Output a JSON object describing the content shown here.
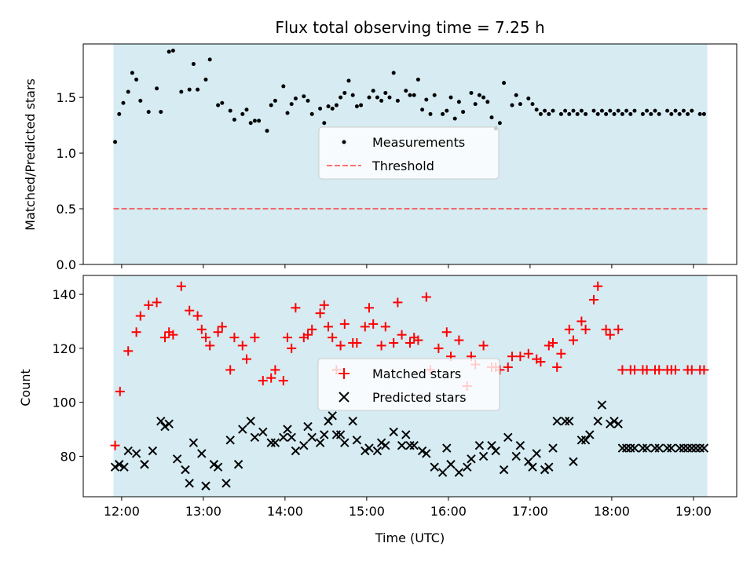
{
  "chart_data": {
    "title": "Flux total observing time = 7.25 h",
    "xlabel": "Time (UTC)",
    "x_ticks": [
      "12:00",
      "13:00",
      "14:00",
      "15:00",
      "16:00",
      "17:00",
      "18:00",
      "19:00"
    ],
    "x_tick_hours": [
      12,
      13,
      14,
      15,
      16,
      17,
      18,
      19
    ],
    "x_range_hours": [
      11.53,
      19.53
    ],
    "shaded_span_hours": [
      11.9,
      19.17
    ],
    "colors": {
      "shade": "#add8e6",
      "matched": "#ff0000",
      "predicted": "#000000",
      "threshold": "#ff0000",
      "measurements": "#000000"
    },
    "subplots": [
      {
        "type": "scatter",
        "ylabel": "Matched/Predicted stars",
        "ylim": [
          0,
          1.98
        ],
        "y_ticks": [
          0.0,
          0.5,
          1.0,
          1.5
        ],
        "y_tick_labels": [
          "0.0",
          "0.5",
          "1.0",
          "1.5"
        ],
        "legend_labels": [
          "Measurements",
          "Threshold"
        ],
        "legend_position": "center",
        "threshold": 0.5,
        "series": [
          {
            "name": "Measurements",
            "x": [
              11.92,
              11.97,
              12.02,
              12.08,
              12.13,
              12.18,
              12.23,
              12.33,
              12.43,
              12.48,
              12.58,
              12.63,
              12.73,
              12.83,
              12.88,
              12.93,
              13.03,
              13.08,
              13.18,
              13.23,
              13.33,
              13.38,
              13.48,
              13.53,
              13.58,
              13.63,
              13.68,
              13.78,
              13.83,
              13.88,
              13.98,
              14.03,
              14.08,
              14.13,
              14.23,
              14.28,
              14.33,
              14.43,
              14.48,
              14.53,
              14.58,
              14.63,
              14.68,
              14.73,
              14.78,
              14.83,
              14.88,
              14.93,
              15.03,
              15.08,
              15.13,
              15.18,
              15.23,
              15.28,
              15.33,
              15.38,
              15.48,
              15.53,
              15.58,
              15.63,
              15.68,
              15.73,
              15.78,
              15.83,
              15.93,
              15.98,
              16.03,
              16.08,
              16.13,
              16.18,
              16.28,
              16.33,
              16.38,
              16.43,
              16.48,
              16.53,
              16.58,
              16.63,
              16.68,
              16.78,
              16.83,
              16.88,
              16.98,
              17.03,
              17.08,
              17.13,
              17.18,
              17.23,
              17.28,
              17.38,
              17.43,
              17.48,
              17.53,
              17.58,
              17.63,
              17.68,
              17.78,
              17.83,
              17.88,
              17.93,
              17.98,
              18.03,
              18.08,
              18.13,
              18.18,
              18.23,
              18.28,
              18.38,
              18.43,
              18.48,
              18.53,
              18.58,
              18.68,
              18.73,
              18.78,
              18.83,
              18.88,
              18.93,
              18.98,
              19.08,
              19.13
            ],
            "y": [
              1.1,
              1.35,
              1.45,
              1.55,
              1.72,
              1.66,
              1.47,
              1.37,
              1.58,
              1.37,
              1.91,
              1.92,
              1.55,
              1.57,
              1.8,
              1.57,
              1.66,
              1.84,
              1.43,
              1.45,
              1.38,
              1.3,
              1.35,
              1.39,
              1.27,
              1.29,
              1.29,
              1.2,
              1.43,
              1.47,
              1.6,
              1.36,
              1.44,
              1.49,
              1.51,
              1.47,
              1.35,
              1.4,
              1.27,
              1.42,
              1.4,
              1.43,
              1.5,
              1.54,
              1.65,
              1.52,
              1.42,
              1.43,
              1.5,
              1.56,
              1.5,
              1.47,
              1.54,
              1.5,
              1.72,
              1.47,
              1.56,
              1.52,
              1.52,
              1.66,
              1.39,
              1.48,
              1.35,
              1.52,
              1.35,
              1.38,
              1.5,
              1.31,
              1.46,
              1.37,
              1.54,
              1.44,
              1.52,
              1.5,
              1.46,
              1.32,
              1.22,
              1.27,
              1.63,
              1.43,
              1.52,
              1.44,
              1.49,
              1.44,
              1.39,
              1.35,
              1.38,
              1.35,
              1.38,
              1.35,
              1.38,
              1.35,
              1.38,
              1.35,
              1.38,
              1.35,
              1.38,
              1.35,
              1.38,
              1.35,
              1.38,
              1.35,
              1.38,
              1.35,
              1.38,
              1.35,
              1.38,
              1.35,
              1.38,
              1.35,
              1.38,
              1.35,
              1.38,
              1.35,
              1.38,
              1.35,
              1.38,
              1.35,
              1.38,
              1.35,
              1.35
            ]
          }
        ]
      },
      {
        "type": "scatter",
        "ylabel": "Count",
        "ylim": [
          65,
          147
        ],
        "y_ticks": [
          80,
          100,
          120,
          140
        ],
        "y_tick_labels": [
          "80",
          "100",
          "120",
          "140"
        ],
        "legend_labels": [
          "Matched stars",
          "Predicted stars"
        ],
        "legend_position": "center",
        "series": [
          {
            "name": "Matched stars",
            "x": [
              11.92,
              11.98,
              12.08,
              12.18,
              12.23,
              12.33,
              12.43,
              12.53,
              12.58,
              12.63,
              12.73,
              12.83,
              12.93,
              12.98,
              13.03,
              13.08,
              13.18,
              13.23,
              13.33,
              13.38,
              13.48,
              13.53,
              13.63,
              13.73,
              13.83,
              13.88,
              13.98,
              14.03,
              14.08,
              14.13,
              14.23,
              14.28,
              14.33,
              14.43,
              14.48,
              14.53,
              14.58,
              14.63,
              14.68,
              14.73,
              14.83,
              14.88,
              14.98,
              15.03,
              15.08,
              15.18,
              15.23,
              15.33,
              15.38,
              15.43,
              15.53,
              15.58,
              15.63,
              15.73,
              15.78,
              15.88,
              15.98,
              16.03,
              16.13,
              16.23,
              16.28,
              16.33,
              16.43,
              16.53,
              16.58,
              16.63,
              16.73,
              16.78,
              16.88,
              16.98,
              17.08,
              17.13,
              17.23,
              17.28,
              17.33,
              17.38,
              17.48,
              17.53,
              17.63,
              17.68,
              17.78,
              17.83,
              17.93,
              17.98,
              18.08,
              18.13,
              18.23,
              18.28,
              18.38,
              18.43,
              18.53,
              18.58,
              18.68,
              18.73,
              18.78,
              18.93,
              18.98,
              19.08,
              19.13
            ],
            "y": [
              84,
              104,
              119,
              126,
              132,
              136,
              137,
              124,
              126,
              125,
              143,
              134,
              132,
              127,
              124,
              121,
              126,
              128,
              112,
              124,
              121,
              116,
              124,
              108,
              109,
              112,
              108,
              124,
              120,
              135,
              124,
              125,
              127,
              133,
              136,
              128,
              124,
              112,
              121,
              129,
              122,
              122,
              128,
              135,
              129,
              121,
              128,
              122,
              137,
              125,
              122,
              124,
              123,
              139,
              112,
              120,
              126,
              117,
              123,
              106,
              117,
              114,
              121,
              113,
              113,
              112,
              113,
              117,
              117,
              118,
              116,
              115,
              121,
              122,
              113,
              118,
              127,
              123,
              130,
              127,
              138,
              143,
              127,
              125,
              127,
              112,
              112,
              112,
              112,
              112,
              112,
              112,
              112,
              112,
              112,
              112,
              112,
              112,
              112
            ]
          },
          {
            "name": "Predicted stars",
            "x": [
              11.92,
              11.97,
              12.03,
              12.08,
              12.18,
              12.28,
              12.38,
              12.48,
              12.53,
              12.58,
              12.68,
              12.78,
              12.83,
              12.88,
              12.98,
              13.03,
              13.13,
              13.18,
              13.28,
              13.33,
              13.43,
              13.48,
              13.58,
              13.63,
              13.73,
              13.83,
              13.88,
              13.98,
              14.03,
              14.08,
              14.13,
              14.23,
              14.28,
              14.33,
              14.43,
              14.48,
              14.53,
              14.58,
              14.63,
              14.68,
              14.73,
              14.83,
              14.88,
              14.98,
              15.03,
              15.13,
              15.18,
              15.23,
              15.33,
              15.43,
              15.48,
              15.53,
              15.58,
              15.68,
              15.73,
              15.83,
              15.93,
              15.98,
              16.03,
              16.13,
              16.23,
              16.28,
              16.38,
              16.43,
              16.53,
              16.58,
              16.68,
              16.73,
              16.83,
              16.88,
              16.98,
              17.03,
              17.08,
              17.18,
              17.23,
              17.28,
              17.33,
              17.43,
              17.48,
              17.53,
              17.63,
              17.68,
              17.73,
              17.83,
              17.88,
              17.98,
              18.03,
              18.08,
              18.13,
              18.18,
              18.23,
              18.28,
              18.38,
              18.43,
              18.53,
              18.58,
              18.68,
              18.73,
              18.83,
              18.88,
              18.93,
              18.98,
              19.03,
              19.08,
              19.13
            ],
            "y": [
              76,
              77,
              76,
              82,
              81,
              77,
              82,
              93,
              91,
              92,
              79,
              75,
              70,
              85,
              81,
              69,
              77,
              76,
              70,
              86,
              77,
              90,
              93,
              87,
              89,
              85,
              85,
              87,
              90,
              87,
              82,
              84,
              91,
              87,
              85,
              88,
              93,
              95,
              88,
              88,
              85,
              93,
              86,
              82,
              83,
              82,
              85,
              84,
              89,
              84,
              88,
              84,
              84,
              82,
              81,
              76,
              74,
              83,
              77,
              74,
              76,
              79,
              84,
              80,
              84,
              82,
              75,
              87,
              80,
              84,
              78,
              76,
              81,
              75,
              76,
              83,
              93,
              93,
              93,
              78,
              86,
              86,
              88,
              93,
              99,
              92,
              93,
              92,
              83,
              83,
              83,
              83,
              83,
              83,
              83,
              83,
              83,
              83,
              83,
              83,
              83,
              83,
              83,
              83,
              83
            ]
          }
        ]
      }
    ]
  }
}
